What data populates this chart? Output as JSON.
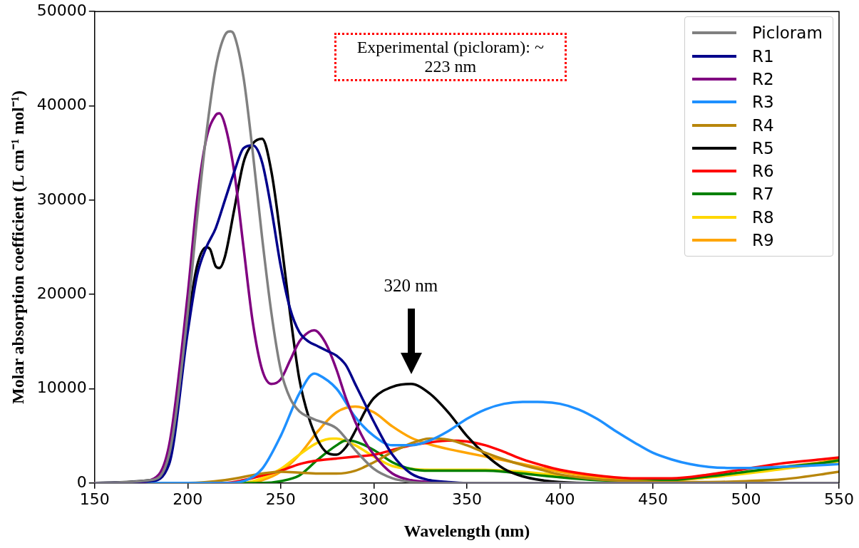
{
  "chart_data": {
    "type": "line",
    "xlabel": "Wavelength (nm)",
    "ylabel": "Molar absorption coefficient (L cm⁻¹ mol⁻¹)",
    "xlim": [
      150,
      550
    ],
    "xticks": [
      150,
      200,
      250,
      300,
      350,
      400,
      450,
      500,
      550
    ],
    "ylim": [
      0,
      50000
    ],
    "yticks": [
      0,
      10000,
      20000,
      30000,
      40000,
      50000
    ],
    "grid": false,
    "legend": "top right",
    "marker": "none",
    "line_style": "solid",
    "annotations": [
      "Experimental (picloram): ~ 223 nm",
      "320 nm"
    ],
    "series": [
      {
        "name": "Picloram",
        "color": "#808080",
        "x": [
          150,
          180,
          190,
          200,
          205,
          210,
          215,
          220,
          223,
          225,
          230,
          235,
          240,
          245,
          250,
          255,
          260,
          265,
          270,
          280,
          290,
          300,
          310,
          320,
          330,
          550
        ],
        "values": [
          0,
          300,
          3000,
          18000,
          28000,
          37000,
          44000,
          47500,
          47900,
          47500,
          43000,
          35000,
          26000,
          18000,
          12000,
          9000,
          7600,
          7000,
          6600,
          5800,
          3500,
          1500,
          500,
          100,
          0,
          0
        ]
      },
      {
        "name": "R1",
        "color": "#00008b",
        "x": [
          150,
          180,
          190,
          200,
          205,
          210,
          215,
          220,
          225,
          230,
          235,
          240,
          245,
          250,
          255,
          260,
          265,
          270,
          275,
          280,
          285,
          290,
          295,
          300,
          310,
          320,
          330,
          340,
          350,
          550
        ],
        "values": [
          0,
          200,
          2000,
          16000,
          22000,
          25000,
          27000,
          30000,
          33000,
          35500,
          35800,
          34000,
          29000,
          23000,
          18500,
          16000,
          15000,
          14500,
          14000,
          13500,
          12500,
          10500,
          8500,
          6500,
          3000,
          1000,
          300,
          100,
          0,
          0
        ]
      },
      {
        "name": "R2",
        "color": "#800080",
        "x": [
          150,
          170,
          180,
          190,
          200,
          205,
          210,
          215,
          217,
          220,
          225,
          230,
          235,
          240,
          245,
          250,
          255,
          260,
          265,
          268,
          270,
          275,
          280,
          285,
          290,
          295,
          300,
          310,
          320,
          330,
          340,
          550
        ],
        "values": [
          0,
          0,
          300,
          4000,
          20000,
          30000,
          36500,
          39000,
          39200,
          38000,
          33000,
          25000,
          17000,
          12000,
          10500,
          11000,
          13000,
          15000,
          16000,
          16200,
          16000,
          14500,
          12000,
          9000,
          6500,
          4500,
          3000,
          1000,
          300,
          100,
          0,
          0
        ]
      },
      {
        "name": "R3",
        "color": "#1e90ff",
        "x": [
          150,
          220,
          230,
          240,
          250,
          260,
          268,
          270,
          280,
          290,
          300,
          310,
          320,
          330,
          340,
          350,
          360,
          370,
          380,
          388,
          400,
          410,
          420,
          430,
          440,
          450,
          460,
          470,
          480,
          490,
          500,
          510,
          530,
          550
        ],
        "values": [
          0,
          0,
          200,
          1500,
          5000,
          9500,
          11600,
          11500,
          10000,
          7000,
          5000,
          4000,
          4000,
          4500,
          5500,
          6800,
          7800,
          8400,
          8600,
          8600,
          8400,
          7800,
          6800,
          5500,
          4300,
          3200,
          2500,
          2000,
          1700,
          1600,
          1600,
          1650,
          1800,
          2000
        ]
      },
      {
        "name": "R4",
        "color": "#b8860b",
        "x": [
          150,
          200,
          220,
          240,
          250,
          260,
          270,
          280,
          290,
          300,
          310,
          320,
          330,
          340,
          350,
          360,
          370,
          380,
          390,
          400,
          420,
          440,
          460,
          480,
          500,
          520,
          540,
          550
        ],
        "values": [
          0,
          0,
          300,
          1000,
          1200,
          1100,
          1000,
          1000,
          1300,
          2200,
          3300,
          4200,
          4700,
          4600,
          4000,
          3200,
          2500,
          1900,
          1400,
          900,
          400,
          200,
          100,
          100,
          200,
          400,
          900,
          1200
        ]
      },
      {
        "name": "R5",
        "color": "#000000",
        "x": [
          150,
          180,
          190,
          200,
          205,
          210,
          212,
          215,
          217,
          220,
          225,
          230,
          235,
          240,
          245,
          250,
          255,
          260,
          265,
          270,
          275,
          280,
          285,
          290,
          295,
          300,
          310,
          320,
          330,
          340,
          350,
          360,
          370,
          380,
          390,
          400,
          420,
          550
        ],
        "values": [
          0,
          300,
          2500,
          17000,
          23000,
          25000,
          24800,
          23000,
          22800,
          24000,
          29000,
          34000,
          36000,
          36500,
          33000,
          26000,
          18000,
          11000,
          7000,
          4500,
          3200,
          3000,
          3800,
          5500,
          7500,
          9000,
          10200,
          10500,
          9500,
          7500,
          5000,
          3000,
          1500,
          700,
          300,
          100,
          0,
          0
        ]
      },
      {
        "name": "R6",
        "color": "#ff0000",
        "x": [
          150,
          220,
          230,
          240,
          250,
          260,
          270,
          280,
          290,
          300,
          310,
          320,
          330,
          340,
          350,
          360,
          370,
          380,
          390,
          400,
          420,
          440,
          460,
          480,
          500,
          520,
          540,
          550
        ],
        "values": [
          0,
          0,
          300,
          800,
          1300,
          2000,
          2400,
          2600,
          2800,
          3000,
          3500,
          4000,
          4300,
          4500,
          4400,
          4000,
          3300,
          2500,
          1900,
          1400,
          800,
          500,
          500,
          900,
          1500,
          2100,
          2500,
          2700
        ]
      },
      {
        "name": "R7",
        "color": "#008000",
        "x": [
          150,
          240,
          250,
          260,
          270,
          280,
          285,
          290,
          300,
          310,
          320,
          330,
          340,
          350,
          360,
          370,
          380,
          400,
          420,
          440,
          460,
          480,
          500,
          520,
          540,
          550
        ],
        "values": [
          0,
          0,
          200,
          800,
          2500,
          4000,
          4500,
          4400,
          3500,
          2200,
          1500,
          1300,
          1300,
          1300,
          1300,
          1200,
          1000,
          600,
          300,
          200,
          300,
          700,
          1200,
          1700,
          2100,
          2400
        ]
      },
      {
        "name": "R8",
        "color": "#ffd700",
        "x": [
          150,
          230,
          240,
          250,
          260,
          270,
          278,
          280,
          290,
          300,
          310,
          320,
          330,
          340,
          350,
          360,
          370,
          380,
          400,
          420,
          440,
          460,
          480,
          500,
          520,
          540,
          550
        ],
        "values": [
          0,
          0,
          500,
          1500,
          3000,
          4300,
          4700,
          4700,
          4000,
          2800,
          1800,
          1500,
          1400,
          1400,
          1400,
          1400,
          1300,
          1200,
          800,
          400,
          200,
          300,
          600,
          1000,
          1500,
          2000,
          2300
        ]
      },
      {
        "name": "R9",
        "color": "#ffa500",
        "x": [
          150,
          230,
          240,
          250,
          260,
          270,
          280,
          290,
          300,
          310,
          320,
          330,
          340,
          350,
          360,
          370,
          380,
          390,
          400,
          420,
          440,
          460,
          480,
          500,
          520,
          540,
          550
        ],
        "values": [
          0,
          0,
          300,
          1200,
          3000,
          5500,
          7500,
          8100,
          7500,
          6000,
          4800,
          4100,
          3600,
          3200,
          2800,
          2400,
          2000,
          1600,
          1200,
          600,
          300,
          300,
          600,
          1100,
          1700,
          2200,
          2500
        ]
      }
    ]
  }
}
